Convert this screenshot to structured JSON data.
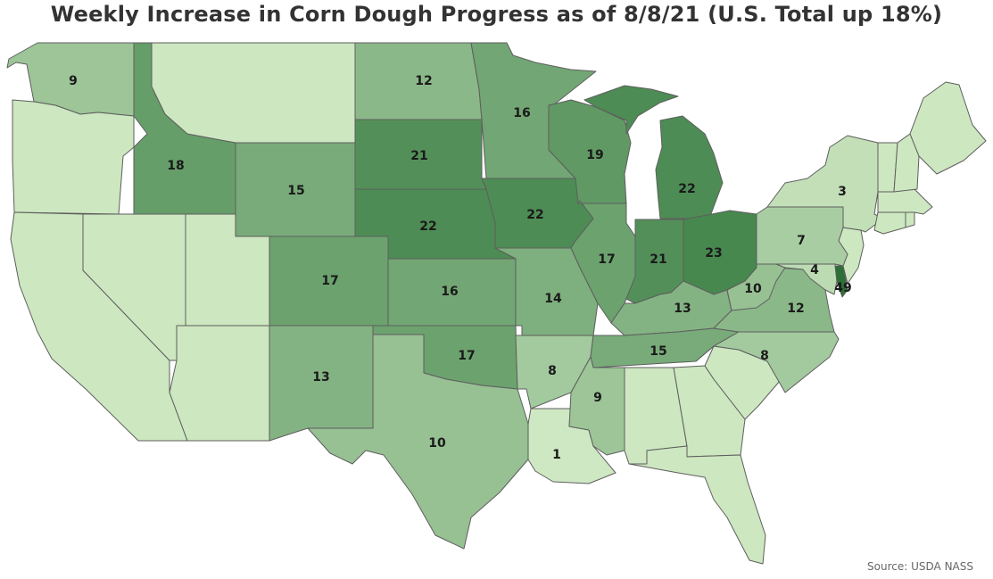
{
  "title": "Weekly Increase in Corn Dough Progress as of 8/8/21 (U.S. Total up 18%)",
  "source": "Source: USDA NASS",
  "chart_data": {
    "type": "choropleth",
    "metric": "Weekly increase in corn dough progress (percentage points)",
    "us_total_change": 18,
    "color_scale": {
      "min_color": "#d4ecc8",
      "max_color": "#3b7f44"
    },
    "states": [
      {
        "state": "WA",
        "value": 9
      },
      {
        "state": "OR",
        "value": null
      },
      {
        "state": "CA",
        "value": null
      },
      {
        "state": "NV",
        "value": null
      },
      {
        "state": "ID",
        "value": 18
      },
      {
        "state": "MT",
        "value": null
      },
      {
        "state": "WY",
        "value": 15
      },
      {
        "state": "UT",
        "value": null
      },
      {
        "state": "AZ",
        "value": null
      },
      {
        "state": "CO",
        "value": 17
      },
      {
        "state": "NM",
        "value": 13
      },
      {
        "state": "ND",
        "value": 12
      },
      {
        "state": "SD",
        "value": 21
      },
      {
        "state": "NE",
        "value": 22
      },
      {
        "state": "KS",
        "value": 16
      },
      {
        "state": "OK",
        "value": 17
      },
      {
        "state": "TX",
        "value": 10
      },
      {
        "state": "MN",
        "value": 16
      },
      {
        "state": "IA",
        "value": 22
      },
      {
        "state": "MO",
        "value": 14
      },
      {
        "state": "AR",
        "value": 8
      },
      {
        "state": "LA",
        "value": 1
      },
      {
        "state": "WI",
        "value": 19
      },
      {
        "state": "IL",
        "value": 17
      },
      {
        "state": "MI",
        "value": 22
      },
      {
        "state": "IN",
        "value": 21
      },
      {
        "state": "OH",
        "value": 23
      },
      {
        "state": "KY",
        "value": 13
      },
      {
        "state": "TN",
        "value": 15
      },
      {
        "state": "MS",
        "value": 9
      },
      {
        "state": "AL",
        "value": null
      },
      {
        "state": "GA",
        "value": null
      },
      {
        "state": "FL",
        "value": null
      },
      {
        "state": "SC",
        "value": null
      },
      {
        "state": "NC",
        "value": 8
      },
      {
        "state": "VA",
        "value": 12
      },
      {
        "state": "WV",
        "value": 10
      },
      {
        "state": "MD",
        "value": 4
      },
      {
        "state": "DE",
        "value": 49
      },
      {
        "state": "NJ",
        "value": null
      },
      {
        "state": "PA",
        "value": 7
      },
      {
        "state": "NY",
        "value": 3
      },
      {
        "state": "CT",
        "value": null
      },
      {
        "state": "RI",
        "value": null
      },
      {
        "state": "MA",
        "value": null
      },
      {
        "state": "VT",
        "value": null
      },
      {
        "state": "NH",
        "value": null
      },
      {
        "state": "ME",
        "value": null
      }
    ]
  }
}
